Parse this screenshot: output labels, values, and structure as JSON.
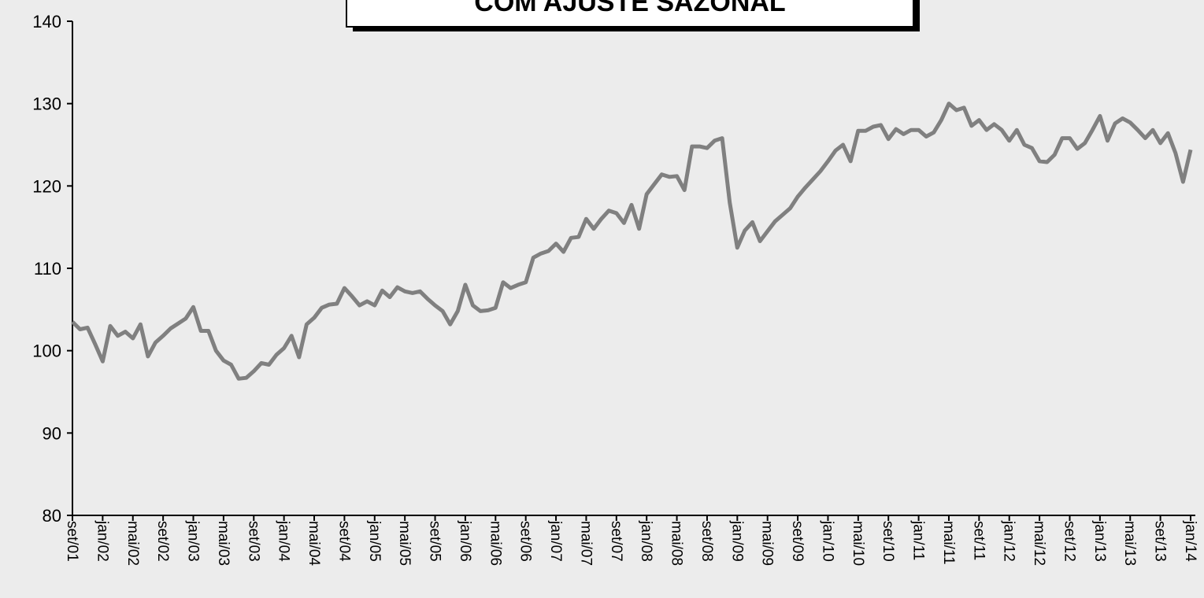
{
  "chart_data": {
    "type": "line",
    "title": "COM AJUSTE SAZONAL",
    "categories": [
      "set/01",
      null,
      null,
      null,
      "jan/02",
      null,
      null,
      null,
      "mai/02",
      null,
      null,
      null,
      "set/02",
      null,
      null,
      null,
      "jan/03",
      null,
      null,
      null,
      "mai/03",
      null,
      null,
      null,
      "set/03",
      null,
      null,
      null,
      "jan/04",
      null,
      null,
      null,
      "mai/04",
      null,
      null,
      null,
      "set/04",
      null,
      null,
      null,
      "jan/05",
      null,
      null,
      null,
      "mai/05",
      null,
      null,
      null,
      "set/05",
      null,
      null,
      null,
      "jan/06",
      null,
      null,
      null,
      "mai/06",
      null,
      null,
      null,
      "set/06",
      null,
      null,
      null,
      "jan/07",
      null,
      null,
      null,
      "mai/07",
      null,
      null,
      null,
      "set/07",
      null,
      null,
      null,
      "jan/08",
      null,
      null,
      null,
      "mai/08",
      null,
      null,
      null,
      "set/08",
      null,
      null,
      null,
      "jan/09",
      null,
      null,
      null,
      "mai/09",
      null,
      null,
      null,
      "set/09",
      null,
      null,
      null,
      "jan/10",
      null,
      null,
      null,
      "mai/10",
      null,
      null,
      null,
      "set/10",
      null,
      null,
      null,
      "jan/11",
      null,
      null,
      null,
      "mai/11",
      null,
      null,
      null,
      "set/11",
      null,
      null,
      null,
      "jan/12",
      null,
      null,
      null,
      "mai/12",
      null,
      null,
      null,
      "set/12",
      null,
      null,
      null,
      "jan/13",
      null,
      null,
      null,
      "mai/13",
      null,
      null,
      null,
      "set/13",
      null,
      null,
      null,
      "jan/14"
    ],
    "values": [
      103.5,
      102.6,
      102.8,
      100.8,
      98.7,
      103.0,
      101.8,
      102.3,
      101.5,
      103.2,
      99.3,
      101.0,
      101.8,
      102.7,
      103.3,
      103.9,
      105.3,
      102.4,
      102.4,
      100.0,
      98.8,
      98.3,
      96.6,
      96.7,
      97.5,
      98.5,
      98.3,
      99.5,
      100.3,
      101.8,
      99.2,
      103.2,
      104.0,
      105.2,
      105.6,
      105.7,
      107.6,
      106.6,
      105.5,
      106.0,
      105.5,
      107.3,
      106.5,
      107.7,
      107.2,
      107.0,
      107.2,
      106.3,
      105.5,
      104.8,
      103.2,
      104.8,
      108.0,
      105.5,
      104.8,
      104.9,
      105.2,
      108.3,
      107.6,
      108.0,
      108.3,
      111.3,
      111.8,
      112.1,
      113.0,
      112.0,
      113.7,
      113.8,
      116.0,
      114.8,
      116.0,
      117.0,
      116.7,
      115.5,
      117.7,
      114.8,
      119.0,
      120.2,
      121.4,
      121.1,
      121.2,
      119.5,
      124.8,
      124.8,
      124.6,
      125.5,
      125.8,
      118.0,
      112.5,
      114.6,
      115.6,
      113.3,
      114.5,
      115.7,
      116.5,
      117.3,
      118.7,
      119.8,
      120.8,
      121.8,
      123.0,
      124.3,
      125.0,
      123.0,
      126.7,
      126.7,
      127.2,
      127.4,
      125.7,
      126.9,
      126.3,
      126.8,
      126.8,
      126.0,
      126.5,
      128.0,
      130.0,
      129.2,
      129.5,
      127.3,
      128.0,
      126.8,
      127.5,
      126.8,
      125.5,
      126.8,
      125.0,
      124.6,
      123.0,
      122.9,
      123.8,
      125.8,
      125.8,
      124.5,
      125.2,
      126.8,
      128.5,
      125.5,
      127.6,
      128.2,
      127.7,
      126.8,
      125.8,
      126.8,
      125.2,
      126.4,
      124.0,
      120.5,
      124.4
    ],
    "color": "#808080",
    "ylim": [
      80,
      140
    ],
    "yticks": [
      80,
      90,
      100,
      110,
      120,
      130,
      140
    ]
  }
}
